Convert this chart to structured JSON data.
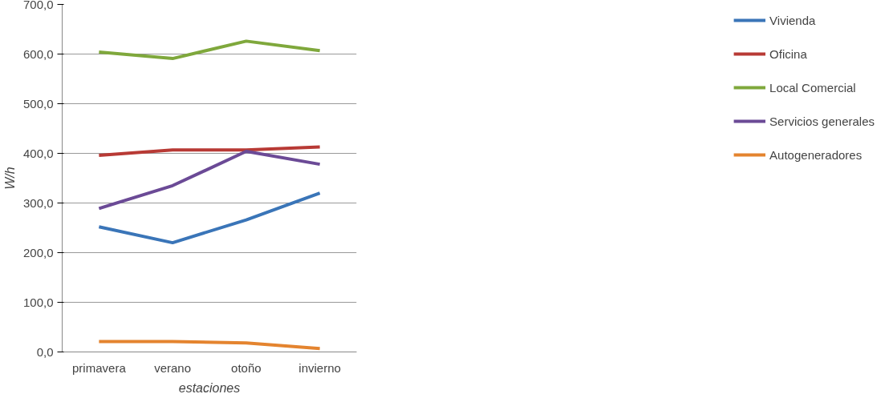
{
  "chart_data": {
    "type": "line",
    "xlabel": "estaciones",
    "ylabel": "W/h",
    "categories": [
      "primavera",
      "verano",
      "otoño",
      "invierno"
    ],
    "series": [
      {
        "name": "Vivienda",
        "color": "#3a75b8",
        "values": [
          252,
          220,
          266,
          320
        ]
      },
      {
        "name": "Oficina",
        "color": "#b83a35",
        "values": [
          396,
          407,
          407,
          413
        ]
      },
      {
        "name": "Local Comercial",
        "color": "#7fa83c",
        "values": [
          604,
          591,
          626,
          607
        ]
      },
      {
        "name": "Servicios generales",
        "color": "#6b4a96",
        "values": [
          289,
          335,
          404,
          378
        ]
      },
      {
        "name": "Autogeneradores",
        "color": "#e4842f",
        "values": [
          21,
          21,
          18,
          7
        ]
      }
    ],
    "ylim": [
      0,
      700
    ],
    "yticks": [
      {
        "value": 0,
        "label": "0,0"
      },
      {
        "value": 100,
        "label": "100,0"
      },
      {
        "value": 200,
        "label": "200,0"
      },
      {
        "value": 300,
        "label": "300,0"
      },
      {
        "value": 400,
        "label": "400,0"
      },
      {
        "value": 500,
        "label": "500,0"
      },
      {
        "value": 600,
        "label": "600,0"
      },
      {
        "value": 700,
        "label": "700,0"
      }
    ],
    "grid": "y",
    "legend": "right",
    "marker": "none",
    "line_style": "solid"
  }
}
